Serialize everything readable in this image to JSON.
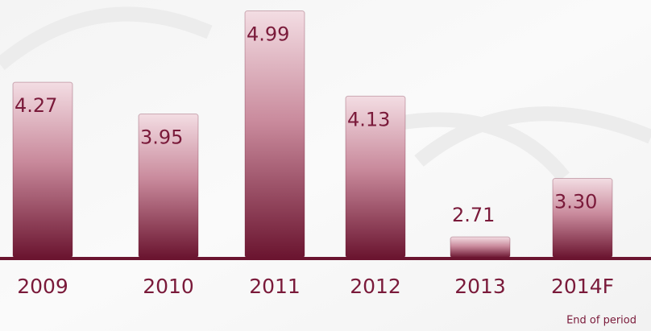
{
  "chart_data": {
    "type": "bar",
    "categories": [
      "2009",
      "2010",
      "2011",
      "2012",
      "2013",
      "2014F"
    ],
    "values": [
      4.27,
      3.95,
      4.99,
      4.13,
      2.71,
      3.3
    ],
    "value_labels": [
      "4.27",
      "3.95",
      "4.99",
      "4.13",
      "2.71",
      "3.30"
    ],
    "ylim": [
      2.5,
      5.1
    ],
    "color": "#6b1530",
    "annotation": "End of period"
  }
}
